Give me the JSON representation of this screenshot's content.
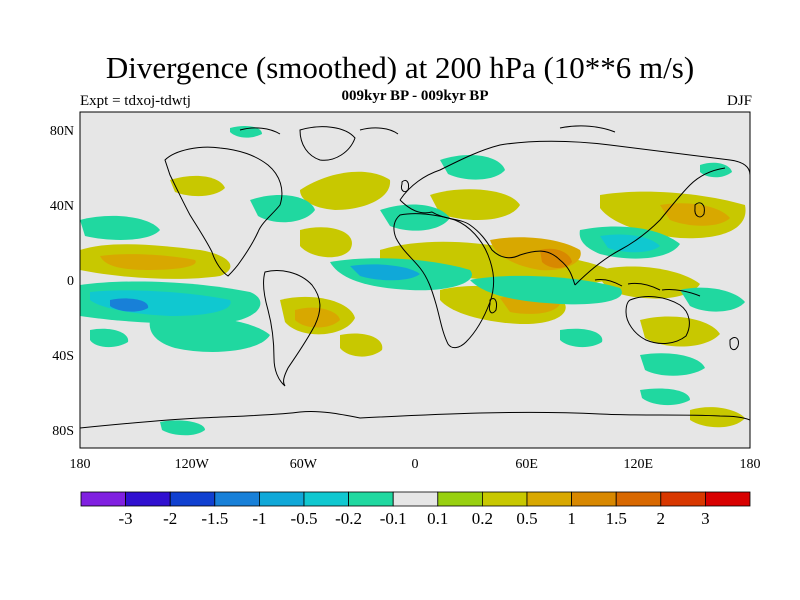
{
  "header": {
    "title": "Divergence (smoothed) at 200 hPa (10**6 m/s)",
    "subtitle": "009kyr BP - 009kyr BP",
    "left_label": "Expt = tdxoj-tdwtj",
    "right_label": "DJF"
  },
  "map": {
    "background_color": "#e6e6e6",
    "coastline_color": "#000000",
    "lon_ticks": [
      "180",
      "120W",
      "60W",
      "0",
      "60E",
      "120E",
      "180"
    ],
    "lat_ticks": [
      "80N",
      "40N",
      "0",
      "40S",
      "80S"
    ],
    "lon_range": [
      -180,
      180
    ],
    "lat_range": [
      -90,
      90
    ]
  },
  "colorbar": {
    "colors": [
      "#8020e0",
      "#3010d0",
      "#1040d0",
      "#1880d8",
      "#10a8d8",
      "#10c8d0",
      "#20d8a0",
      "#e6e6e6",
      "#98d010",
      "#c8c800",
      "#d8a800",
      "#d88800",
      "#d86800",
      "#d83800",
      "#d80000"
    ],
    "labels": [
      "-3",
      "-2",
      "-1.5",
      "-1",
      "-0.5",
      "-0.2",
      "-0.1",
      "0.1",
      "0.2",
      "0.5",
      "1",
      "1.5",
      "2",
      "3"
    ]
  }
}
